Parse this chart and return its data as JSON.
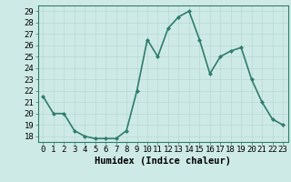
{
  "x": [
    0,
    1,
    2,
    3,
    4,
    5,
    6,
    7,
    8,
    9,
    10,
    11,
    12,
    13,
    14,
    15,
    16,
    17,
    18,
    19,
    20,
    21,
    22,
    23
  ],
  "y": [
    21.5,
    20.0,
    20.0,
    18.5,
    18.0,
    17.8,
    17.8,
    17.8,
    18.5,
    22.0,
    26.5,
    25.0,
    27.5,
    28.5,
    29.0,
    26.5,
    23.5,
    25.0,
    25.5,
    25.8,
    23.0,
    21.0,
    19.5,
    19.0
  ],
  "xlim": [
    -0.5,
    23.5
  ],
  "ylim": [
    17.5,
    29.5
  ],
  "yticks": [
    18,
    19,
    20,
    21,
    22,
    23,
    24,
    25,
    26,
    27,
    28,
    29
  ],
  "xticks": [
    0,
    1,
    2,
    3,
    4,
    5,
    6,
    7,
    8,
    9,
    10,
    11,
    12,
    13,
    14,
    15,
    16,
    17,
    18,
    19,
    20,
    21,
    22,
    23
  ],
  "xlabel": "Humidex (Indice chaleur)",
  "line_color": "#2e7d6e",
  "marker": "D",
  "marker_size": 2.0,
  "bg_color": "#ceeae6",
  "grid_color": "#b8d8d4",
  "line_width": 1.2,
  "xlabel_fontsize": 7.5,
  "tick_fontsize": 6.5
}
